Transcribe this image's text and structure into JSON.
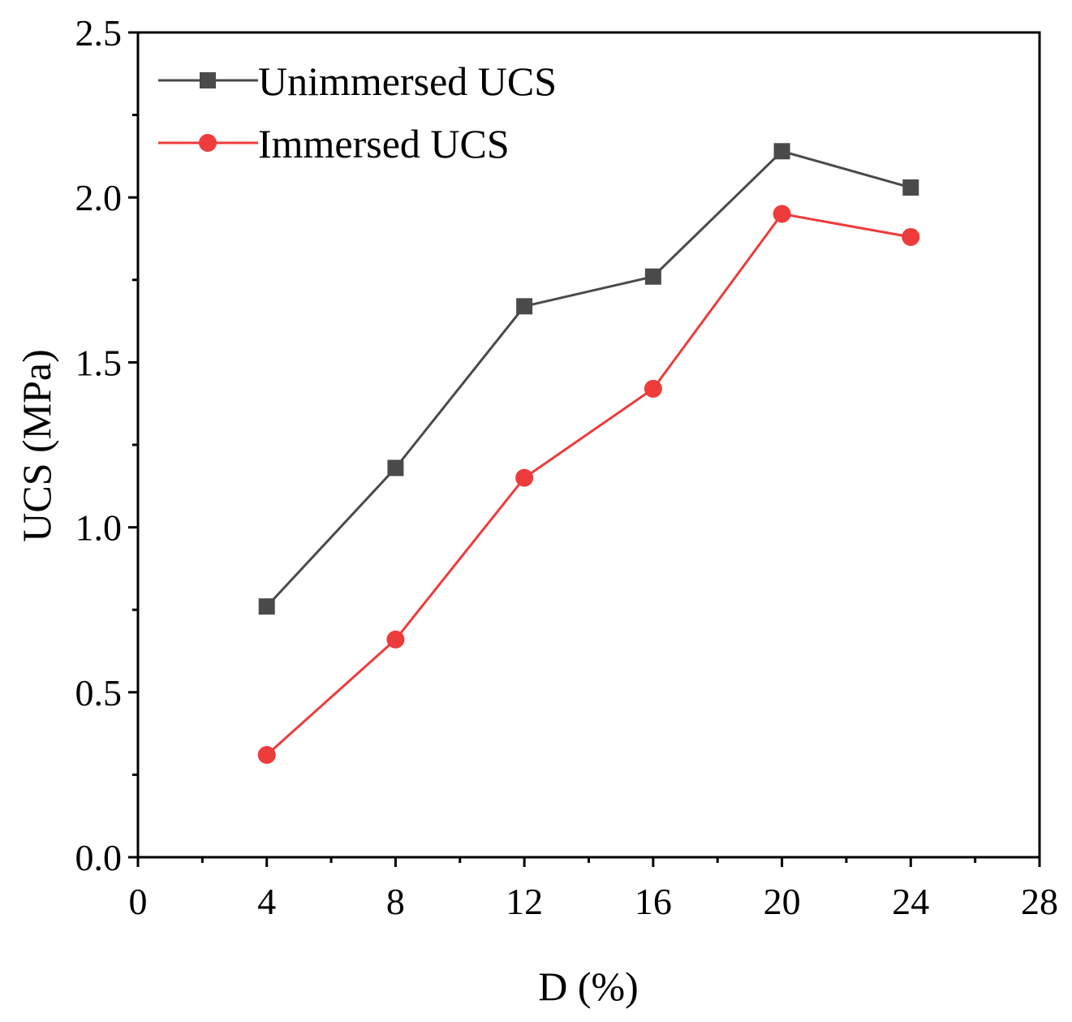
{
  "chart_data": {
    "type": "line",
    "title": "",
    "xlabel": "D (%)",
    "ylabel": "UCS (MPa)",
    "xlim": [
      0,
      28
    ],
    "ylim": [
      0.0,
      2.5
    ],
    "xticks": [
      0,
      4,
      8,
      12,
      16,
      20,
      24,
      28
    ],
    "xtick_labels": [
      "0",
      "4",
      "8",
      "12",
      "16",
      "20",
      "24",
      "28"
    ],
    "yticks": [
      0.0,
      0.5,
      1.0,
      1.5,
      2.0,
      2.5
    ],
    "ytick_labels": [
      "0.0",
      "0.5",
      "1.0",
      "1.5",
      "2.0",
      "2.5"
    ],
    "grid": false,
    "legend_position": "top-left",
    "x": [
      4,
      8,
      12,
      16,
      20,
      24
    ],
    "series": [
      {
        "name": "Unimmersed UCS",
        "marker": "square",
        "color": "#4a4a4a",
        "values": [
          0.76,
          1.18,
          1.67,
          1.76,
          2.14,
          2.03
        ]
      },
      {
        "name": "Immersed UCS",
        "marker": "circle",
        "color": "#ee3b3b",
        "values": [
          0.31,
          0.66,
          1.15,
          1.42,
          1.95,
          1.88
        ]
      }
    ]
  }
}
